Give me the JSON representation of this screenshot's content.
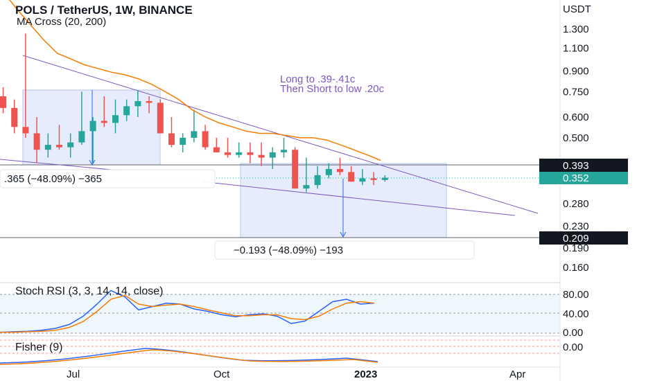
{
  "header": {
    "title": "POLS / TetherUS, 1W, BINANCE",
    "subtitle": "MA Cross (20, 200)"
  },
  "price_axis": {
    "currency": "USDT",
    "ticks": [
      "1.300",
      "1.100",
      "0.900",
      "0.750",
      "0.600",
      "0.500",
      "0.280",
      "0.230",
      "0.190",
      "0.160"
    ],
    "tags": {
      "upper": "0.393",
      "current": "0.352",
      "lower": "0.209"
    }
  },
  "annotation": {
    "line1": "Long to .39-.41c",
    "line2": "Then Short to low .20c"
  },
  "measure": {
    "first": ".365 (−48.09%) −365",
    "second": "−0.193 (−48.09%) −193"
  },
  "stoch_rsi": {
    "label": "Stoch RSI (3, 3, 14, 14, close)",
    "ticks": [
      "80.00",
      "40.00",
      "0.00"
    ]
  },
  "fisher": {
    "label": "Fisher (9)",
    "ticks": [
      "0.00"
    ]
  },
  "time_axis": {
    "labels": [
      "Jul",
      "Oct",
      "2023",
      "Apr"
    ]
  },
  "colors": {
    "up": "#26a69a",
    "down": "#ef5350",
    "ma": "#f57c00",
    "trend": "#7e57c2",
    "box_fill": "#dde6fb",
    "box_stroke": "#b6c6f0",
    "measure_arrow": "#2962ff",
    "stoch_k": "#2962ff",
    "stoch_d": "#f57c00",
    "tag_bg": "#131722",
    "current_tag_bg": "#26a69a"
  },
  "chart_data": {
    "type": "candlestick",
    "series": [
      {
        "name": "candles",
        "ohlc": [
          [
            0.72,
            0.78,
            0.62,
            0.65
          ],
          [
            0.65,
            0.7,
            0.52,
            0.55
          ],
          [
            0.55,
            1.25,
            0.5,
            0.52
          ],
          [
            0.52,
            0.6,
            0.4,
            0.45
          ],
          [
            0.45,
            0.52,
            0.42,
            0.47
          ],
          [
            0.47,
            0.56,
            0.45,
            0.46
          ],
          [
            0.46,
            0.52,
            0.42,
            0.48
          ],
          [
            0.48,
            0.75,
            0.47,
            0.53
          ],
          [
            0.53,
            0.6,
            0.4,
            0.58
          ],
          [
            0.58,
            0.72,
            0.55,
            0.57
          ],
          [
            0.57,
            0.7,
            0.52,
            0.61
          ],
          [
            0.61,
            0.7,
            0.58,
            0.66
          ],
          [
            0.66,
            0.76,
            0.6,
            0.69
          ],
          [
            0.69,
            0.72,
            0.62,
            0.68
          ],
          [
            0.68,
            0.7,
            0.52,
            0.52
          ],
          [
            0.52,
            0.6,
            0.46,
            0.47
          ],
          [
            0.47,
            0.52,
            0.44,
            0.5
          ],
          [
            0.5,
            0.64,
            0.48,
            0.53
          ],
          [
            0.53,
            0.56,
            0.45,
            0.46
          ],
          [
            0.46,
            0.5,
            0.44,
            0.44
          ],
          [
            0.44,
            0.5,
            0.42,
            0.43
          ],
          [
            0.43,
            0.48,
            0.42,
            0.44
          ],
          [
            0.44,
            0.48,
            0.4,
            0.43
          ],
          [
            0.43,
            0.48,
            0.39,
            0.42
          ],
          [
            0.42,
            0.46,
            0.38,
            0.44
          ],
          [
            0.44,
            0.5,
            0.42,
            0.45
          ],
          [
            0.45,
            0.46,
            0.32,
            0.32
          ],
          [
            0.32,
            0.42,
            0.31,
            0.33
          ],
          [
            0.33,
            0.39,
            0.32,
            0.36
          ],
          [
            0.36,
            0.4,
            0.35,
            0.38
          ],
          [
            0.38,
            0.42,
            0.36,
            0.37
          ],
          [
            0.37,
            0.39,
            0.34,
            0.34
          ],
          [
            0.34,
            0.38,
            0.33,
            0.35
          ],
          [
            0.35,
            0.37,
            0.33,
            0.345
          ],
          [
            0.345,
            0.36,
            0.34,
            0.352
          ]
        ]
      },
      {
        "name": "MA 20",
        "values": [
          1.8,
          1.55,
          1.35,
          1.18,
          1.05,
          1.0,
          0.95,
          0.92,
          0.89,
          0.87,
          0.84,
          0.8,
          0.75,
          0.7,
          0.64,
          0.6,
          0.57,
          0.55,
          0.53,
          0.52,
          0.52,
          0.51,
          0.5,
          0.5,
          0.49,
          0.47,
          0.45,
          0.43,
          0.41
        ]
      }
    ],
    "stoch_rsi": {
      "k": [
        2,
        3,
        4,
        6,
        10,
        18,
        35,
        60,
        88,
        75,
        48,
        55,
        62,
        60,
        50,
        45,
        38,
        34,
        38,
        40,
        35,
        20,
        25,
        45,
        65,
        70,
        60,
        62
      ],
      "d": [
        2,
        2,
        3,
        4,
        6,
        12,
        24,
        45,
        70,
        78,
        60,
        55,
        58,
        60,
        55,
        48,
        42,
        36,
        36,
        38,
        38,
        30,
        28,
        35,
        50,
        62,
        65,
        62
      ]
    }
  }
}
